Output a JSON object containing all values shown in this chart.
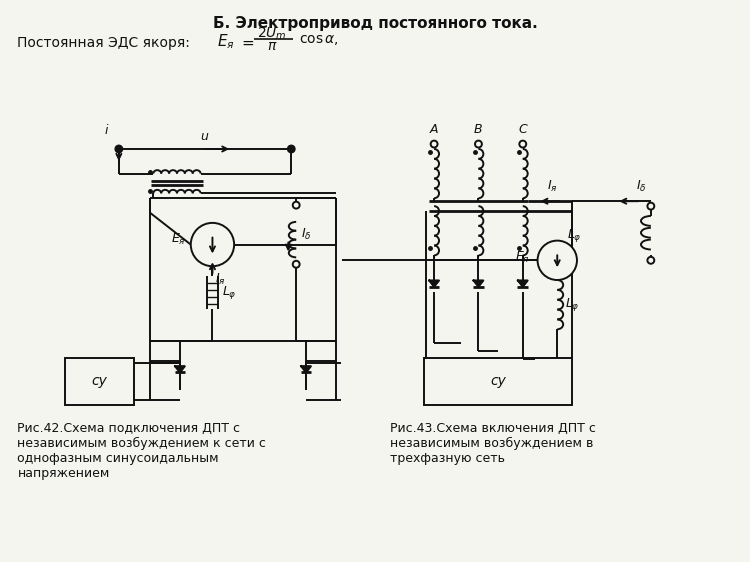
{
  "title": "Б. Электропривод постоянного тока.",
  "formula_left": "Постоянная ЭДС якоря:",
  "fig1_caption": "Рис.42.Схема подключения ДПТ с\nнезависимым возбуждением к сети с\nоднофазным синусоидальным\nнапряжением",
  "fig2_caption": "Рис.43.Схема включения ДПТ с\nнезависимым возбуждением в\nтрехфазную сеть",
  "bg_color": "#f5f5f0",
  "line_color": "#111111",
  "text_color": "#111111"
}
